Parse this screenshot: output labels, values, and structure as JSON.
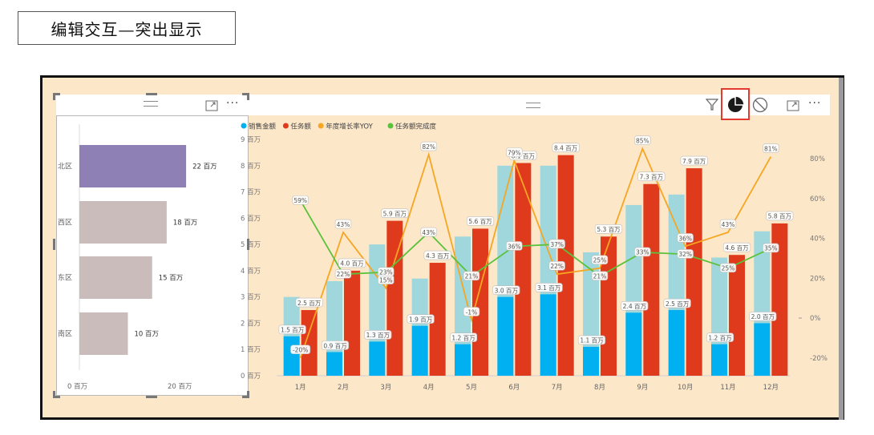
{
  "page_title": "编辑交互—突出显示",
  "header": {
    "more_label": "···"
  },
  "left_chart": {
    "type": "bar",
    "orientation": "horizontal",
    "categories": [
      "北区",
      "西区",
      "东区",
      "南区"
    ],
    "values": [
      22,
      18,
      15,
      10
    ],
    "value_labels": [
      "22 百万",
      "18 百万",
      "15 百万",
      "10 百万"
    ],
    "x_ticks": [
      "0 百万",
      "20 百万"
    ],
    "colors": [
      "#8e7fb5",
      "#cbbcbc",
      "#cbbcbc",
      "#cbbcbc"
    ]
  },
  "chart_data": {
    "type": "bar",
    "categories": [
      "1月",
      "2月",
      "3月",
      "4月",
      "5月",
      "6月",
      "7月",
      "8月",
      "9月",
      "10月",
      "11月",
      "12月"
    ],
    "legend": [
      "销售金额",
      "任务额",
      "年度增长率YOY",
      "任务额完成度"
    ],
    "legend_colors": [
      "#00b0f0",
      "#e03a1c",
      "#f5a623",
      "#5ac23c"
    ],
    "series": [
      {
        "name": "销售金额",
        "kind": "bar",
        "highlight": [
          1.5,
          0.9,
          1.3,
          1.9,
          1.2,
          3.0,
          3.1,
          1.1,
          2.4,
          2.5,
          1.2,
          2.0
        ],
        "total": [
          3.0,
          3.6,
          5.0,
          3.7,
          5.3,
          8.0,
          8.0,
          4.7,
          6.5,
          6.9,
          4.5,
          5.5
        ],
        "labels": [
          "1.5 百万",
          "0.9 百万",
          "1.3 百万",
          "1.9 百万",
          "1.2 百万",
          "3.0 百万",
          "3.1 百万",
          "1.1 百万",
          "2.4 百万",
          "2.5 百万",
          "1.2 百万",
          "2.0 百万"
        ]
      },
      {
        "name": "任务额",
        "kind": "bar",
        "values": [
          2.5,
          4.0,
          5.9,
          4.3,
          5.6,
          8.1,
          8.4,
          5.3,
          7.3,
          7.9,
          4.6,
          5.8
        ],
        "labels": [
          "2.5 百万",
          "4.0 百万",
          "5.9 百万",
          "4.3 百万",
          "5.6 百万",
          "8.1 百万",
          "8.4 百万",
          "5.3 百万",
          "7.3 百万",
          "7.9 百万",
          "4.6 百万",
          "5.8 百万"
        ]
      },
      {
        "name": "年度增长率YOY",
        "kind": "line",
        "values": [
          -20,
          43,
          15,
          82,
          -1,
          79,
          22,
          25,
          85,
          36,
          43,
          81
        ],
        "labels": [
          "-20%",
          "43%",
          "15%",
          "82%",
          "-1%",
          "79%",
          "22%",
          "25%",
          "85%",
          "36%",
          "43%",
          "81%"
        ]
      },
      {
        "name": "任务额完成度",
        "kind": "line",
        "values": [
          59,
          22,
          23,
          43,
          21,
          36,
          37,
          21,
          33,
          32,
          25,
          35
        ],
        "labels": [
          "59%",
          "22%",
          "23%",
          "43%",
          "21%",
          "36%",
          "37%",
          "21%",
          "33%",
          "32%",
          "25%",
          "35%"
        ]
      }
    ],
    "y_ticks": [
      "0 百万",
      "1 百万",
      "2 百万",
      "3 百万",
      "4 百万",
      "5 百万",
      "6 百万",
      "7 百万",
      "8 百万",
      "9 百万"
    ],
    "ylim": [
      0,
      9
    ],
    "y2_ticks": [
      "-20%",
      "0%",
      "20%",
      "40%",
      "60%",
      "80%"
    ],
    "y2lim": [
      -30,
      97
    ],
    "highlight_color": "#00b0f0",
    "dim_color": "#9fd7dc"
  }
}
